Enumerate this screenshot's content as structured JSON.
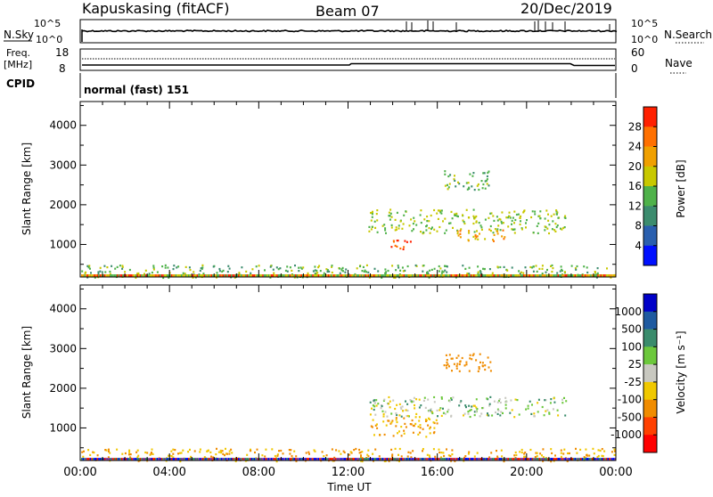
{
  "header": {
    "station": "Kapuskasing (fitACF)",
    "beam": "Beam 07",
    "date": "20/Dec/2019"
  },
  "nsky_panel": {
    "left_label": "N.Sky",
    "left_ticks": [
      "10^5",
      "10^0"
    ],
    "right_ticks": [
      "10^5",
      "10^0"
    ],
    "right_label": "N.Search"
  },
  "freq_panel": {
    "left_label_1": "Freq.",
    "left_label_2": "[MHz]",
    "left_ticks": [
      "18",
      "8"
    ],
    "right_ticks": [
      "60",
      "0"
    ],
    "right_label": "Nave"
  },
  "cpid_panel": {
    "label": "CPID",
    "program": "normal (fast) 151"
  },
  "chart_data": [
    {
      "type": "heatmap",
      "panel": "power",
      "ylabel": "Slant Range [km]",
      "y_ticks": [
        "1000",
        "2000",
        "3000",
        "4000"
      ],
      "ylim": [
        180,
        4600
      ],
      "xlim": [
        0,
        24
      ],
      "colorbar_label": "Power [dB]",
      "colorbar_ticks": [
        "4",
        "8",
        "12",
        "16",
        "20",
        "24",
        "28"
      ],
      "colors": [
        "#0010ff",
        "#2a5fae",
        "#3c8c6e",
        "#4fb24a",
        "#c8c800",
        "#f0a000",
        "#ff7000",
        "#ff2000"
      ],
      "echo_regions": [
        {
          "t_start": 0.0,
          "t_end": 24.0,
          "range_low": 180,
          "range_high": 500,
          "power_db": 14
        },
        {
          "t_start": 12.9,
          "t_end": 21.8,
          "range_low": 1300,
          "range_high": 1900,
          "power_db": 16
        },
        {
          "t_start": 13.9,
          "t_end": 14.9,
          "range_low": 850,
          "range_high": 1150,
          "power_db": 28
        },
        {
          "t_start": 16.8,
          "t_end": 19.0,
          "range_low": 1100,
          "range_high": 1400,
          "power_db": 22
        },
        {
          "t_start": 16.3,
          "t_end": 18.3,
          "range_low": 2400,
          "range_high": 2900,
          "power_db": 14
        }
      ]
    },
    {
      "type": "heatmap",
      "panel": "velocity",
      "ylabel": "Slant Range [km]",
      "y_ticks": [
        "1000",
        "2000",
        "3000",
        "4000"
      ],
      "ylim": [
        180,
        4600
      ],
      "xlim": [
        0,
        24
      ],
      "x_ticks": [
        "00:00",
        "04:00",
        "08:00",
        "12:00",
        "16:00",
        "20:00",
        "00:00"
      ],
      "xlabel": "Time UT",
      "colorbar_label": "Velocity [m s⁻¹]",
      "colorbar_ticks": [
        "1000",
        "500",
        "100",
        "25",
        "-25",
        "-100",
        "-500",
        "-1000"
      ],
      "colors": [
        "#0000c8",
        "#1e5aa0",
        "#3a8c6c",
        "#6cc83c",
        "#c8c8c0",
        "#f0c800",
        "#f08c00",
        "#ff4000",
        "#ff0000"
      ],
      "echo_regions": [
        {
          "t_start": 0.0,
          "t_end": 24.0,
          "range_low": 180,
          "range_high": 500,
          "velocity": -100
        },
        {
          "t_start": 12.9,
          "t_end": 21.8,
          "range_low": 1300,
          "range_high": 1800,
          "velocity": 0
        },
        {
          "t_start": 13.0,
          "t_end": 16.0,
          "range_low": 800,
          "range_high": 1300,
          "velocity": -100
        },
        {
          "t_start": 16.2,
          "t_end": 18.4,
          "range_low": 2400,
          "range_high": 2900,
          "velocity": -300
        }
      ]
    }
  ]
}
